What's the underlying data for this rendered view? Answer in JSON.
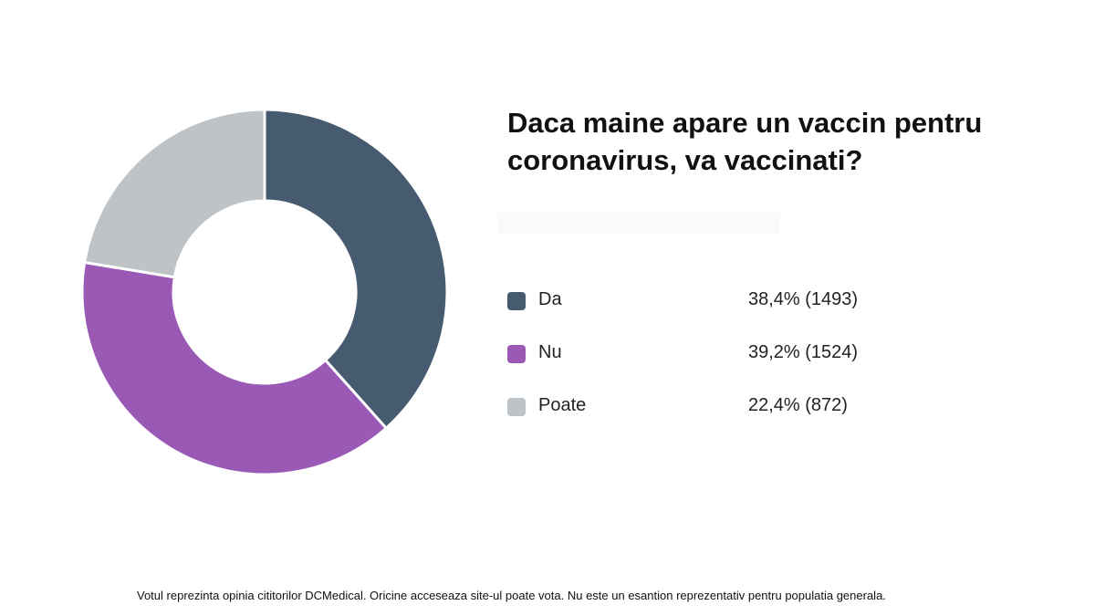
{
  "chart_data": {
    "type": "pie",
    "title": "Daca maine apare un vaccin pentru coronavirus, va vaccinati?",
    "title_lines": [
      "Daca maine apare un vaccin pentru",
      "coronavirus, va vaccinati?"
    ],
    "style": "donut",
    "legend_position": "right",
    "slices": [
      {
        "label": "Da",
        "percent": 38.4,
        "count": 1493,
        "display": "38,4% (1493)",
        "color": "#465a70"
      },
      {
        "label": "Nu",
        "percent": 39.2,
        "count": 1524,
        "display": "39,2% (1524)",
        "color": "#9b59b6"
      },
      {
        "label": "Poate",
        "percent": 22.4,
        "count": 872,
        "display": "22,4% (872)",
        "color": "#bdc3c7"
      }
    ]
  },
  "footnote": "Votul reprezinta opinia cititorilor DCMedical. Oricine acceseaza site-ul poate vota. Nu este un esantion reprezentativ pentru populatia generala."
}
